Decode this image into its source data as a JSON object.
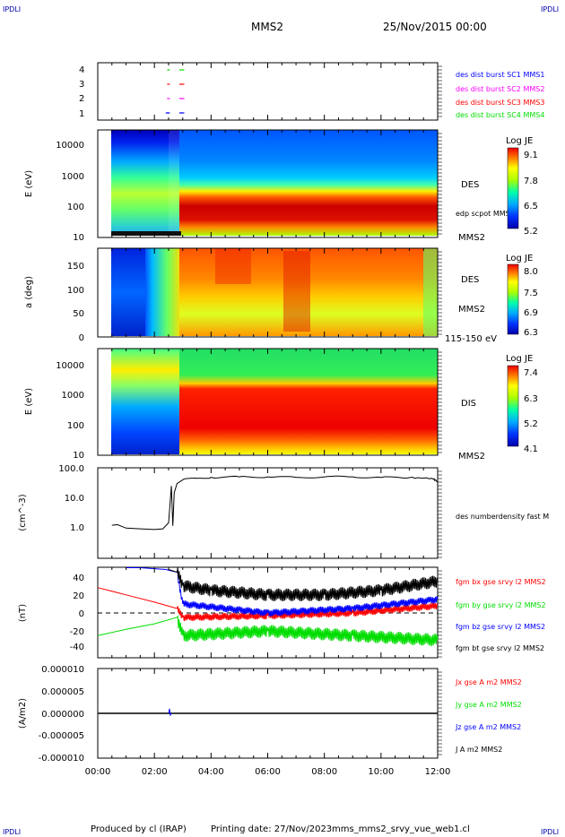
{
  "header": {
    "corner_left_top": "IPDLI",
    "corner_right_top": "IPDLI",
    "corner_left_bottom": "IPDLI",
    "corner_right_bottom": "IPDLI",
    "spacecraft": "MMS2",
    "date_time": "25/Nov/2015 00:00"
  },
  "footer": {
    "produced_by": "Produced by cl (IRAP)",
    "printing_date": "Printing date: 27/Nov/2023",
    "script_name": "mms_mms2_srvy_vue_web1.cl"
  },
  "colors": {
    "red": "#ff0000",
    "green": "#00dd00",
    "blue": "#0000ff",
    "magenta": "#ff00ff",
    "black": "#000000",
    "dark_blue": "#0000aa"
  },
  "chart_data": [
    {
      "type": "scatter",
      "panel": "burst",
      "ylim": [
        0.5,
        4.5
      ],
      "yticks": [
        "1",
        "2",
        "3",
        "4"
      ],
      "legend": [
        {
          "text": "des dist burst SC1 MMS1",
          "color": "#0000ff"
        },
        {
          "text": "des dist burst SC2 MMS2",
          "color": "#ff00ff"
        },
        {
          "text": "des dist burst SC3 MMS3",
          "color": "#ff0000"
        },
        {
          "text": "des dist burst SC4 MMS4",
          "color": "#00dd00"
        }
      ],
      "series": [
        {
          "y": 4,
          "color": "#00dd00",
          "x_hours": [
            2.45,
            2.88,
            2.96
          ]
        },
        {
          "y": 3,
          "color": "#ff0000",
          "x_hours": [
            2.45,
            2.88,
            2.96
          ]
        },
        {
          "y": 2,
          "color": "#ff00ff",
          "x_hours": [
            2.45,
            2.88,
            2.96
          ]
        },
        {
          "y": 1,
          "color": "#0000ff",
          "x_hours": [
            2.4,
            2.45,
            2.88,
            2.96
          ]
        }
      ]
    },
    {
      "type": "heatmap",
      "panel": "des_energy",
      "ylabel": "E (eV)",
      "yscale": "log",
      "ylim": [
        10,
        30000
      ],
      "yticks": [
        "10",
        "100",
        "1000",
        "10000"
      ],
      "labels": [
        "DES",
        "edp scpot MMS2",
        "MMS2"
      ],
      "colorbar": {
        "title": "Log JE",
        "ticks": [
          "9.1",
          "7.8",
          "6.5",
          "5.2"
        ]
      },
      "description_peaks": "before 02:40 broad 10-10000 eV, after 02:50 intense band 30-150 eV"
    },
    {
      "type": "heatmap",
      "panel": "des_pitch",
      "ylabel": "a (deg)",
      "ylim": [
        0,
        180
      ],
      "yticks": [
        "0",
        "50",
        "100",
        "150"
      ],
      "labels": [
        "DES",
        "MMS2",
        "115-150 eV"
      ],
      "colorbar": {
        "title": "Log JE",
        "ticks": [
          "8.0",
          "7.5",
          "6.9",
          "6.3"
        ]
      }
    },
    {
      "type": "heatmap",
      "panel": "dis_energy",
      "ylabel": "E (eV)",
      "yscale": "log",
      "ylim": [
        10,
        30000
      ],
      "yticks": [
        "10",
        "100",
        "1000",
        "10000"
      ],
      "labels": [
        "DIS",
        "MMS2"
      ],
      "colorbar": {
        "title": "Log JE",
        "ticks": [
          "7.4",
          "6.3",
          "5.2",
          "4.1"
        ]
      }
    },
    {
      "type": "line",
      "panel": "density",
      "ylabel": "(cm^-3)",
      "yscale": "log",
      "ylim": [
        0.1,
        100
      ],
      "yticks": [
        "1.0",
        "10.0",
        "100.0"
      ],
      "legend": [
        {
          "text": "des numberdensity fast M",
          "color": "#000000"
        }
      ],
      "x_hours": [
        0.5,
        0.7,
        1.0,
        1.5,
        2.0,
        2.3,
        2.5,
        2.6,
        2.65,
        2.7,
        2.8,
        3.0,
        3.5,
        4.0,
        5.0,
        6.0,
        7.0,
        8.0,
        9.0,
        10.0,
        11.0,
        11.8,
        12.0
      ],
      "y": [
        1.25,
        1.3,
        1.0,
        0.95,
        0.9,
        0.95,
        1.5,
        25,
        1.2,
        15,
        30,
        40,
        45,
        48,
        50,
        50,
        48,
        50,
        50,
        48,
        47,
        45,
        35
      ]
    },
    {
      "type": "line",
      "panel": "magnetic_field",
      "ylabel": "(nT)",
      "ylim": [
        -50,
        50
      ],
      "yticks": [
        "-40",
        "-20",
        "0",
        "20",
        "40"
      ],
      "legend": [
        {
          "text": "fgm bx gse srvy l2 MMS2",
          "color": "#ff0000"
        },
        {
          "text": "fgm by gse srvy l2 MMS2",
          "color": "#00dd00"
        },
        {
          "text": "fgm bz gse srvy l2 MMS2",
          "color": "#0000ff"
        },
        {
          "text": "fgm bt gse srvy l2 MMS2",
          "color": "#000000"
        }
      ],
      "series": [
        {
          "name": "fgm bx gse srvy l2 MMS2",
          "color": "#ff0000",
          "x_hours": [
            0,
            1,
            2,
            2.8,
            3,
            6,
            9,
            12
          ],
          "y": [
            28,
            20,
            12,
            5,
            -5,
            -3,
            0,
            8
          ]
        },
        {
          "name": "fgm by gse srvy l2 MMS2",
          "color": "#00dd00",
          "x_hours": [
            0,
            1,
            2,
            2.8,
            3,
            6,
            9,
            12
          ],
          "y": [
            -25,
            -18,
            -12,
            -5,
            -25,
            -20,
            -25,
            -30
          ]
        },
        {
          "name": "fgm bz gse srvy l2 MMS2",
          "color": "#0000ff",
          "x_hours": [
            1.0,
            1.5,
            2.4,
            2.8,
            3.0,
            6.0,
            9.0,
            12.0
          ],
          "y": [
            50,
            50,
            48,
            45,
            10,
            0,
            5,
            15
          ]
        },
        {
          "name": "fgm bt gse srvy l2 MMS2",
          "color": "#000000",
          "x_hours": [
            2.5,
            2.8,
            3,
            4,
            6,
            8,
            10,
            12
          ],
          "y": [
            48,
            45,
            30,
            25,
            20,
            20,
            25,
            35
          ]
        }
      ]
    },
    {
      "type": "line",
      "panel": "current",
      "ylabel": "(A/m2)",
      "ylim": [
        -0.0001,
        0.0001
      ],
      "yticks": [
        "-0.000010",
        "-0.000005",
        "0.000000",
        "0.000005",
        "0.000010"
      ],
      "legend": [
        {
          "text": "Jx gse A m2 MMS2",
          "color": "#ff0000"
        },
        {
          "text": "Jy gse A m2 MMS2",
          "color": "#00dd00"
        },
        {
          "text": "Jz gse A m2 MMS2",
          "color": "#0000ff"
        },
        {
          "text": "J A m2 MMS2",
          "color": "#000000"
        }
      ]
    }
  ],
  "time_axis": {
    "xlim_hours": [
      0,
      12
    ],
    "tick_labels": [
      "00:00",
      "02:00",
      "04:00",
      "06:00",
      "08:00",
      "10:00",
      "12:00"
    ]
  }
}
